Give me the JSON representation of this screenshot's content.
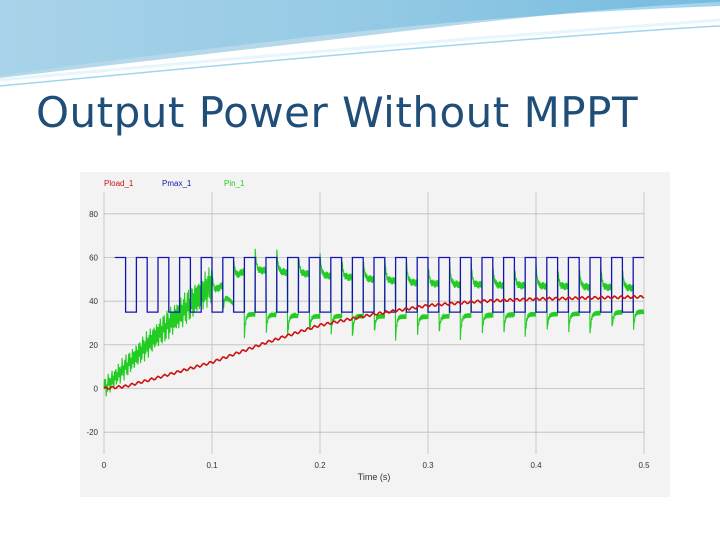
{
  "slide": {
    "title": "Output Power Without MPPT"
  },
  "colors": {
    "title": "#1f4e79",
    "banner_dark": "#2b8fc7",
    "banner_light": "#bfe3f3",
    "pload": "#cc1111",
    "pmax": "#1515b0",
    "pin": "#22cc22",
    "grid": "#bdbdbd",
    "plot_bg": "#f3f3f3"
  },
  "chart_data": {
    "type": "line",
    "xlabel": "Time (s)",
    "xlim": [
      0,
      0.5
    ],
    "ylim": [
      -30,
      90
    ],
    "x_ticks": [
      "0",
      "0.1",
      "0.2",
      "0.3",
      "0.4",
      "0.5"
    ],
    "y_ticks": [
      "-20",
      "0",
      "20",
      "40",
      "60",
      "80"
    ],
    "grid": true,
    "legend_position": "top-left",
    "series": [
      {
        "name": "Pload_1",
        "color": "#cc1111",
        "style": "smooth rise",
        "x": [
          0,
          0.02,
          0.05,
          0.1,
          0.15,
          0.2,
          0.25,
          0.3,
          0.35,
          0.4,
          0.45,
          0.5
        ],
        "y": [
          0,
          1,
          5,
          12,
          21,
          29,
          34,
          38,
          40,
          41,
          41.5,
          42
        ]
      },
      {
        "name": "Pmax_1",
        "color": "#1515b0",
        "style": "square wave",
        "period": 0.02,
        "high": 60,
        "low": 35,
        "x_start": 0.01,
        "x_end": 0.5
      },
      {
        "name": "Pin_1",
        "color": "#22cc22",
        "style": "switching ripple",
        "period": 0.02,
        "x": [
          0,
          0.05,
          0.1,
          0.13,
          0.15,
          0.2,
          0.3,
          0.4,
          0.5
        ],
        "upper": [
          0,
          25,
          48,
          58,
          58,
          56,
          52,
          51,
          50
        ],
        "lower": [
          0,
          25,
          48,
          34,
          34,
          33,
          33,
          34,
          35
        ]
      }
    ]
  }
}
